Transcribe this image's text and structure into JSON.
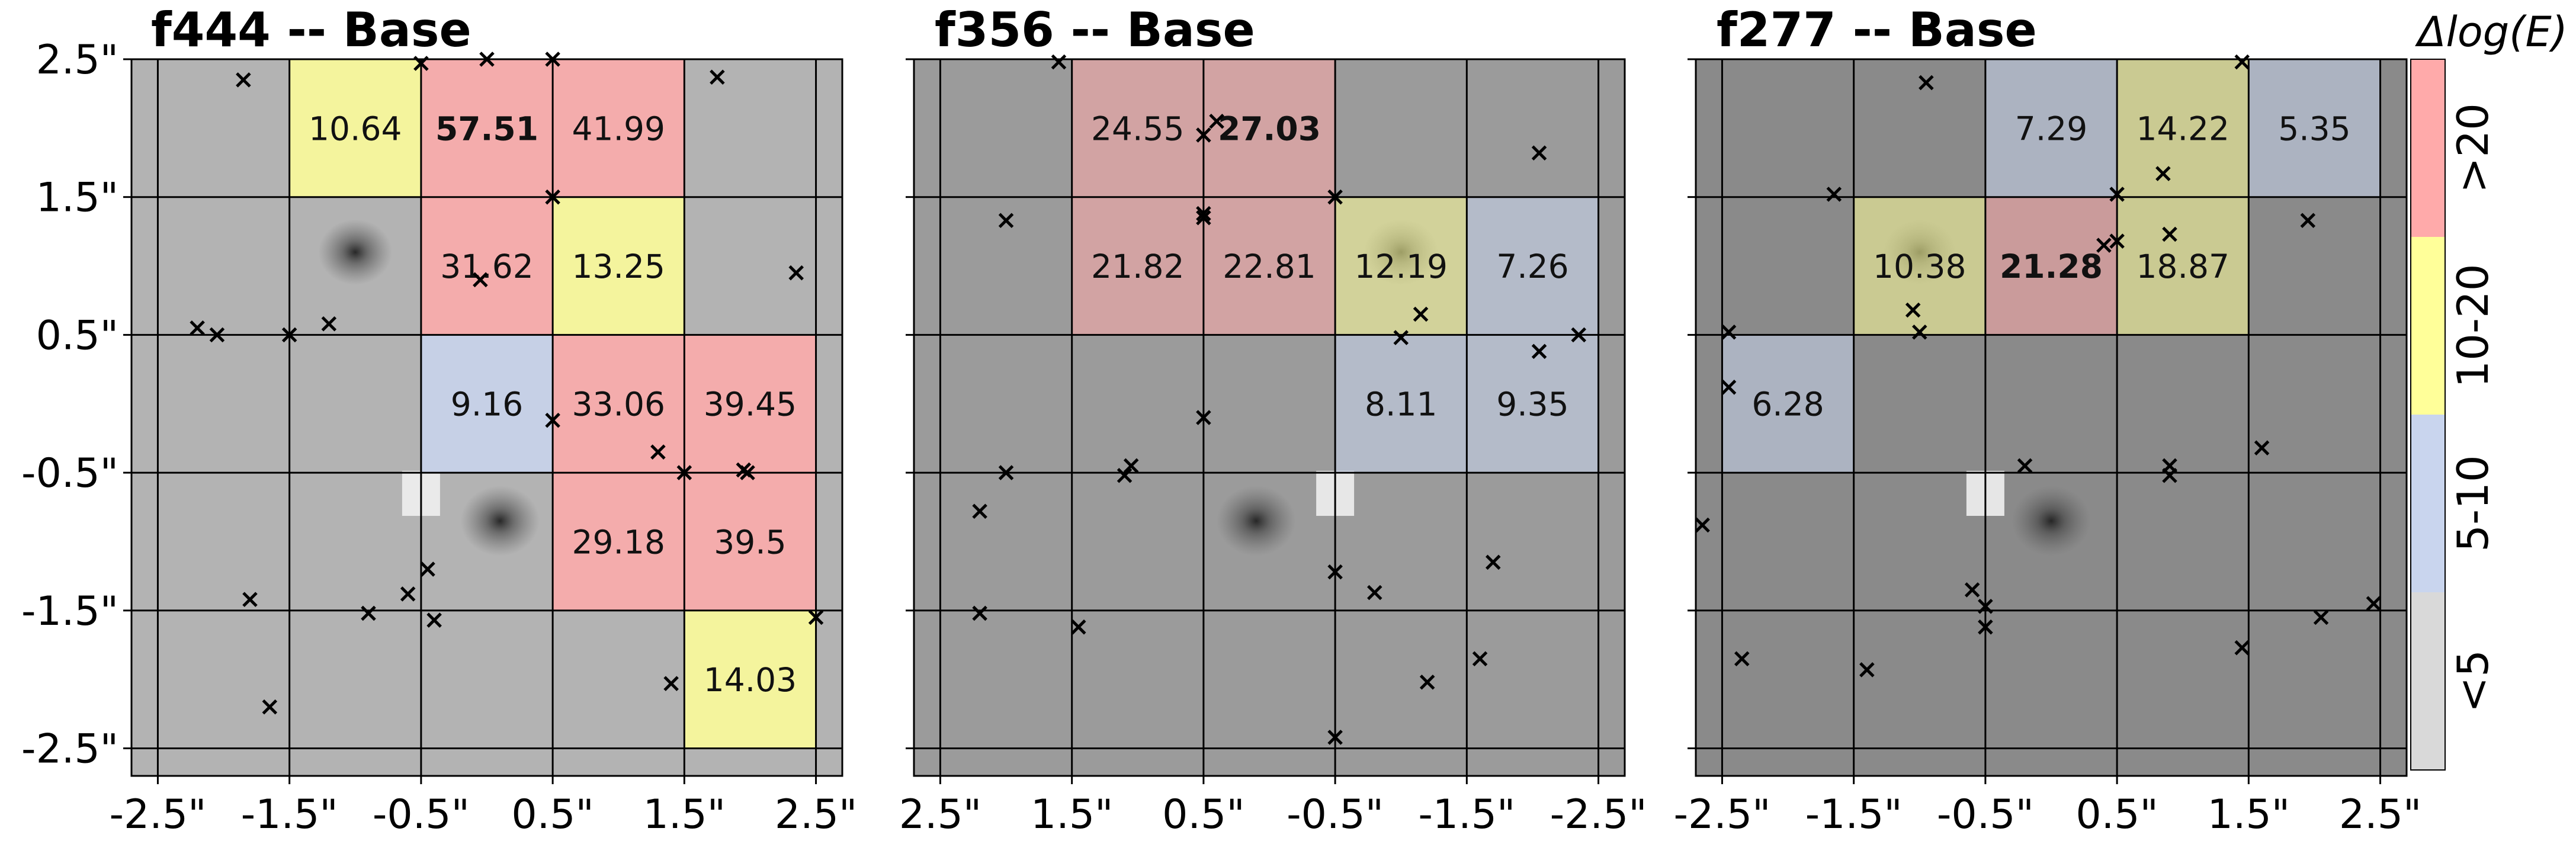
{
  "figure": {
    "colorbar": {
      "title": "Δlog(E)",
      "bins": [
        {
          "label": "<5",
          "color": "#d9d9d9"
        },
        {
          "label": "5-10",
          "color": "#c9d5ee"
        },
        {
          "label": "10-20",
          "color": "#ffff99"
        },
        {
          "label": ">20",
          "color": "#ffaaaa"
        }
      ]
    }
  },
  "chart_data": [
    {
      "type": "heatmap",
      "title": "f444  --  Base",
      "xlim": [
        -2.7,
        2.7
      ],
      "ylim": [
        -2.7,
        2.5
      ],
      "xticks": [
        -2.5,
        -1.5,
        -0.5,
        0.5,
        1.5,
        2.5
      ],
      "xtick_labels": [
        "-2.5\"",
        "-1.5\"",
        "-0.5\"",
        "0.5\"",
        "1.5\"",
        "2.5\""
      ],
      "yticks": [
        2.5,
        1.5,
        0.5,
        -0.5,
        -1.5,
        -2.5
      ],
      "ytick_labels": [
        "2.5\"",
        "1.5\"",
        "0.5\"",
        "-0.5\"",
        "-1.5\"",
        "-2.5\""
      ],
      "background_gray": "#b3b3b3",
      "galaxies": [
        {
          "x": -1.0,
          "y": 1.1,
          "r": 0.28
        },
        {
          "x": 0.1,
          "y": -0.85,
          "r": 0.3
        }
      ],
      "artifact": {
        "x": -0.5,
        "y": -0.65
      },
      "cells": [
        {
          "x": -1.0,
          "y": 2.0,
          "value": "10.64",
          "bin": "10-20",
          "bold": false
        },
        {
          "x": 0.0,
          "y": 2.0,
          "value": "57.51",
          "bin": ">20",
          "bold": true
        },
        {
          "x": 1.0,
          "y": 2.0,
          "value": "41.99",
          "bin": ">20",
          "bold": false
        },
        {
          "x": 0.0,
          "y": 1.0,
          "value": "31.62",
          "bin": ">20",
          "bold": false
        },
        {
          "x": 1.0,
          "y": 1.0,
          "value": "13.25",
          "bin": "10-20",
          "bold": false
        },
        {
          "x": 0.0,
          "y": 0.0,
          "value": "9.16",
          "bin": "5-10",
          "bold": false
        },
        {
          "x": 1.0,
          "y": 0.0,
          "value": "33.06",
          "bin": ">20",
          "bold": false
        },
        {
          "x": 2.0,
          "y": 0.0,
          "value": "39.45",
          "bin": ">20",
          "bold": false
        },
        {
          "x": 1.0,
          "y": -1.0,
          "value": "29.18",
          "bin": ">20",
          "bold": false
        },
        {
          "x": 2.0,
          "y": -1.0,
          "value": "39.5",
          "bin": ">20",
          "bold": false
        },
        {
          "x": 2.0,
          "y": -2.0,
          "value": "14.03",
          "bin": "10-20",
          "bold": false
        }
      ],
      "markers": [
        [
          -1.85,
          2.35
        ],
        [
          -0.5,
          2.47
        ],
        [
          0.0,
          2.5
        ],
        [
          0.5,
          2.5
        ],
        [
          1.75,
          2.37
        ],
        [
          0.5,
          1.5
        ],
        [
          -0.05,
          0.9
        ],
        [
          2.35,
          0.95
        ],
        [
          -2.2,
          0.55
        ],
        [
          -2.05,
          0.5
        ],
        [
          -1.5,
          0.5
        ],
        [
          -1.2,
          0.58
        ],
        [
          0.5,
          -0.12
        ],
        [
          1.3,
          -0.35
        ],
        [
          1.5,
          -0.5
        ],
        [
          1.95,
          -0.48
        ],
        [
          1.98,
          -0.5
        ],
        [
          -0.45,
          -1.2
        ],
        [
          -0.6,
          -1.38
        ],
        [
          -1.8,
          -1.42
        ],
        [
          -0.9,
          -1.52
        ],
        [
          -0.4,
          -1.57
        ],
        [
          2.5,
          -1.55
        ],
        [
          1.4,
          -2.03
        ],
        [
          -1.65,
          -2.2
        ]
      ]
    },
    {
      "type": "heatmap",
      "title": "f356  --  Base",
      "xlim": [
        -2.7,
        2.7
      ],
      "ylim": [
        -2.7,
        2.5
      ],
      "xticks": [
        2.5,
        1.5,
        0.5,
        -0.5,
        -1.5,
        -2.5
      ],
      "xtick_labels": [
        "2.5\"",
        "1.5\"",
        "0.5\"",
        "-0.5\"",
        "-1.5\"",
        "-2.5\""
      ],
      "yticks": [
        2.5,
        1.5,
        0.5,
        -0.5,
        -1.5,
        -2.5
      ],
      "ytick_labels": [],
      "background_gray": "#9b9b9b",
      "galaxies": [
        {
          "x": -1.0,
          "y": 1.1,
          "r": 0.28
        },
        {
          "x": 0.1,
          "y": -0.85,
          "r": 0.3
        }
      ],
      "artifact": {
        "x": -0.5,
        "y": -0.65
      },
      "cells": [
        {
          "x": 0.0,
          "y": 2.0,
          "value": "27.03",
          "bin": ">20",
          "bold": true
        },
        {
          "x": 1.0,
          "y": 2.0,
          "value": "24.55",
          "bin": ">20",
          "bold": false
        },
        {
          "x": -2.0,
          "y": 1.0,
          "value": "7.26",
          "bin": "5-10",
          "bold": false
        },
        {
          "x": -1.0,
          "y": 1.0,
          "value": "12.19",
          "bin": "10-20",
          "bold": false
        },
        {
          "x": 0.0,
          "y": 1.0,
          "value": "22.81",
          "bin": ">20",
          "bold": false
        },
        {
          "x": 1.0,
          "y": 1.0,
          "value": "21.82",
          "bin": ">20",
          "bold": false
        },
        {
          "x": -2.0,
          "y": 0.0,
          "value": "9.35",
          "bin": "5-10",
          "bold": false
        },
        {
          "x": -1.0,
          "y": 0.0,
          "value": "8.11",
          "bin": "5-10",
          "bold": false
        }
      ],
      "markers": [
        [
          1.6,
          2.48
        ],
        [
          -2.05,
          1.82
        ],
        [
          0.4,
          2.05
        ],
        [
          0.5,
          1.95
        ],
        [
          -0.5,
          1.5
        ],
        [
          0.5,
          1.38
        ],
        [
          0.5,
          1.35
        ],
        [
          2.0,
          1.33
        ],
        [
          -2.35,
          0.5
        ],
        [
          -2.05,
          0.38
        ],
        [
          -1.15,
          0.65
        ],
        [
          -1.0,
          0.48
        ],
        [
          0.5,
          -0.1
        ],
        [
          1.05,
          -0.45
        ],
        [
          1.1,
          -0.52
        ],
        [
          2.0,
          -0.5
        ],
        [
          2.2,
          -0.78
        ],
        [
          -1.7,
          -1.15
        ],
        [
          -0.5,
          -1.22
        ],
        [
          -0.8,
          -1.37
        ],
        [
          1.45,
          -1.62
        ],
        [
          2.2,
          -1.52
        ],
        [
          -1.6,
          -1.85
        ],
        [
          -1.2,
          -2.02
        ],
        [
          -0.5,
          -2.42
        ]
      ]
    },
    {
      "type": "heatmap",
      "title": "f277  --  Base",
      "xlim": [
        -2.7,
        2.7
      ],
      "ylim": [
        -2.7,
        2.5
      ],
      "xticks": [
        -2.5,
        -1.5,
        -0.5,
        0.5,
        1.5,
        2.5
      ],
      "xtick_labels": [
        "-2.5\"",
        "-1.5\"",
        "-0.5\"",
        "0.5\"",
        "1.5\"",
        "2.5\""
      ],
      "yticks": [
        2.5,
        1.5,
        0.5,
        -0.5,
        -1.5,
        -2.5
      ],
      "ytick_labels": [],
      "background_gray": "#8a8a8a",
      "galaxies": [
        {
          "x": -1.0,
          "y": 1.1,
          "r": 0.28
        },
        {
          "x": 0.0,
          "y": -0.85,
          "r": 0.3
        }
      ],
      "artifact": {
        "x": -0.5,
        "y": -0.65
      },
      "cells": [
        {
          "x": 0.0,
          "y": 2.0,
          "value": "7.29",
          "bin": "5-10",
          "bold": false
        },
        {
          "x": 1.0,
          "y": 2.0,
          "value": "14.22",
          "bin": "10-20",
          "bold": false
        },
        {
          "x": 2.0,
          "y": 2.0,
          "value": "5.35",
          "bin": "5-10",
          "bold": false
        },
        {
          "x": -1.0,
          "y": 1.0,
          "value": "10.38",
          "bin": "10-20",
          "bold": false
        },
        {
          "x": 0.0,
          "y": 1.0,
          "value": "21.28",
          "bin": ">20",
          "bold": true
        },
        {
          "x": 1.0,
          "y": 1.0,
          "value": "18.87",
          "bin": "10-20",
          "bold": false
        },
        {
          "x": -2.0,
          "y": 0.0,
          "value": "6.28",
          "bin": "5-10",
          "bold": false
        }
      ],
      "markers": [
        [
          1.45,
          2.48
        ],
        [
          -0.95,
          2.33
        ],
        [
          0.5,
          1.52
        ],
        [
          -1.65,
          1.52
        ],
        [
          0.85,
          1.67
        ],
        [
          0.9,
          1.23
        ],
        [
          1.95,
          1.33
        ],
        [
          0.5,
          1.18
        ],
        [
          0.4,
          1.15
        ],
        [
          -1.05,
          0.68
        ],
        [
          -1.0,
          0.52
        ],
        [
          -2.45,
          0.52
        ],
        [
          -2.45,
          0.12
        ],
        [
          1.6,
          -0.32
        ],
        [
          -0.2,
          -0.45
        ],
        [
          0.9,
          -0.45
        ],
        [
          0.9,
          -0.52
        ],
        [
          -2.65,
          -0.88
        ],
        [
          -0.6,
          -1.35
        ],
        [
          -0.5,
          -1.47
        ],
        [
          -0.5,
          -1.62
        ],
        [
          -2.35,
          -1.85
        ],
        [
          -1.4,
          -1.93
        ],
        [
          1.45,
          -1.77
        ],
        [
          2.05,
          -1.55
        ],
        [
          2.45,
          -1.45
        ]
      ]
    }
  ]
}
